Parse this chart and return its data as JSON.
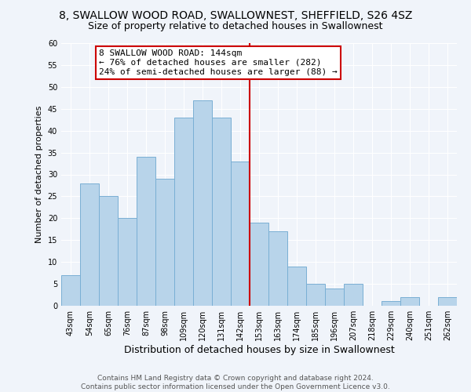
{
  "title": "8, SWALLOW WOOD ROAD, SWALLOWNEST, SHEFFIELD, S26 4SZ",
  "subtitle": "Size of property relative to detached houses in Swallownest",
  "xlabel": "Distribution of detached houses by size in Swallownest",
  "ylabel": "Number of detached properties",
  "bin_labels": [
    "43sqm",
    "54sqm",
    "65sqm",
    "76sqm",
    "87sqm",
    "98sqm",
    "109sqm",
    "120sqm",
    "131sqm",
    "142sqm",
    "153sqm",
    "163sqm",
    "174sqm",
    "185sqm",
    "196sqm",
    "207sqm",
    "218sqm",
    "229sqm",
    "240sqm",
    "251sqm",
    "262sqm"
  ],
  "bar_values": [
    7,
    28,
    25,
    20,
    34,
    29,
    43,
    47,
    43,
    33,
    19,
    17,
    9,
    5,
    4,
    5,
    0,
    1,
    2,
    0,
    2
  ],
  "bar_color": "#b8d4ea",
  "bar_edgecolor": "#7aafd4",
  "vline_color": "#cc0000",
  "annotation_text": "8 SWALLOW WOOD ROAD: 144sqm\n← 76% of detached houses are smaller (282)\n24% of semi-detached houses are larger (88) →",
  "annotation_box_edgecolor": "#cc0000",
  "annotation_box_facecolor": "#ffffff",
  "ylim": [
    0,
    60
  ],
  "yticks": [
    0,
    5,
    10,
    15,
    20,
    25,
    30,
    35,
    40,
    45,
    50,
    55,
    60
  ],
  "footer_text": "Contains HM Land Registry data © Crown copyright and database right 2024.\nContains public sector information licensed under the Open Government Licence v3.0.",
  "bg_color": "#f0f4fa",
  "plot_bg_color": "#f0f4fa",
  "grid_color": "#ffffff",
  "title_fontsize": 10,
  "subtitle_fontsize": 9,
  "xlabel_fontsize": 9,
  "ylabel_fontsize": 8,
  "tick_fontsize": 7,
  "annotation_fontsize": 8,
  "footer_fontsize": 6.5
}
